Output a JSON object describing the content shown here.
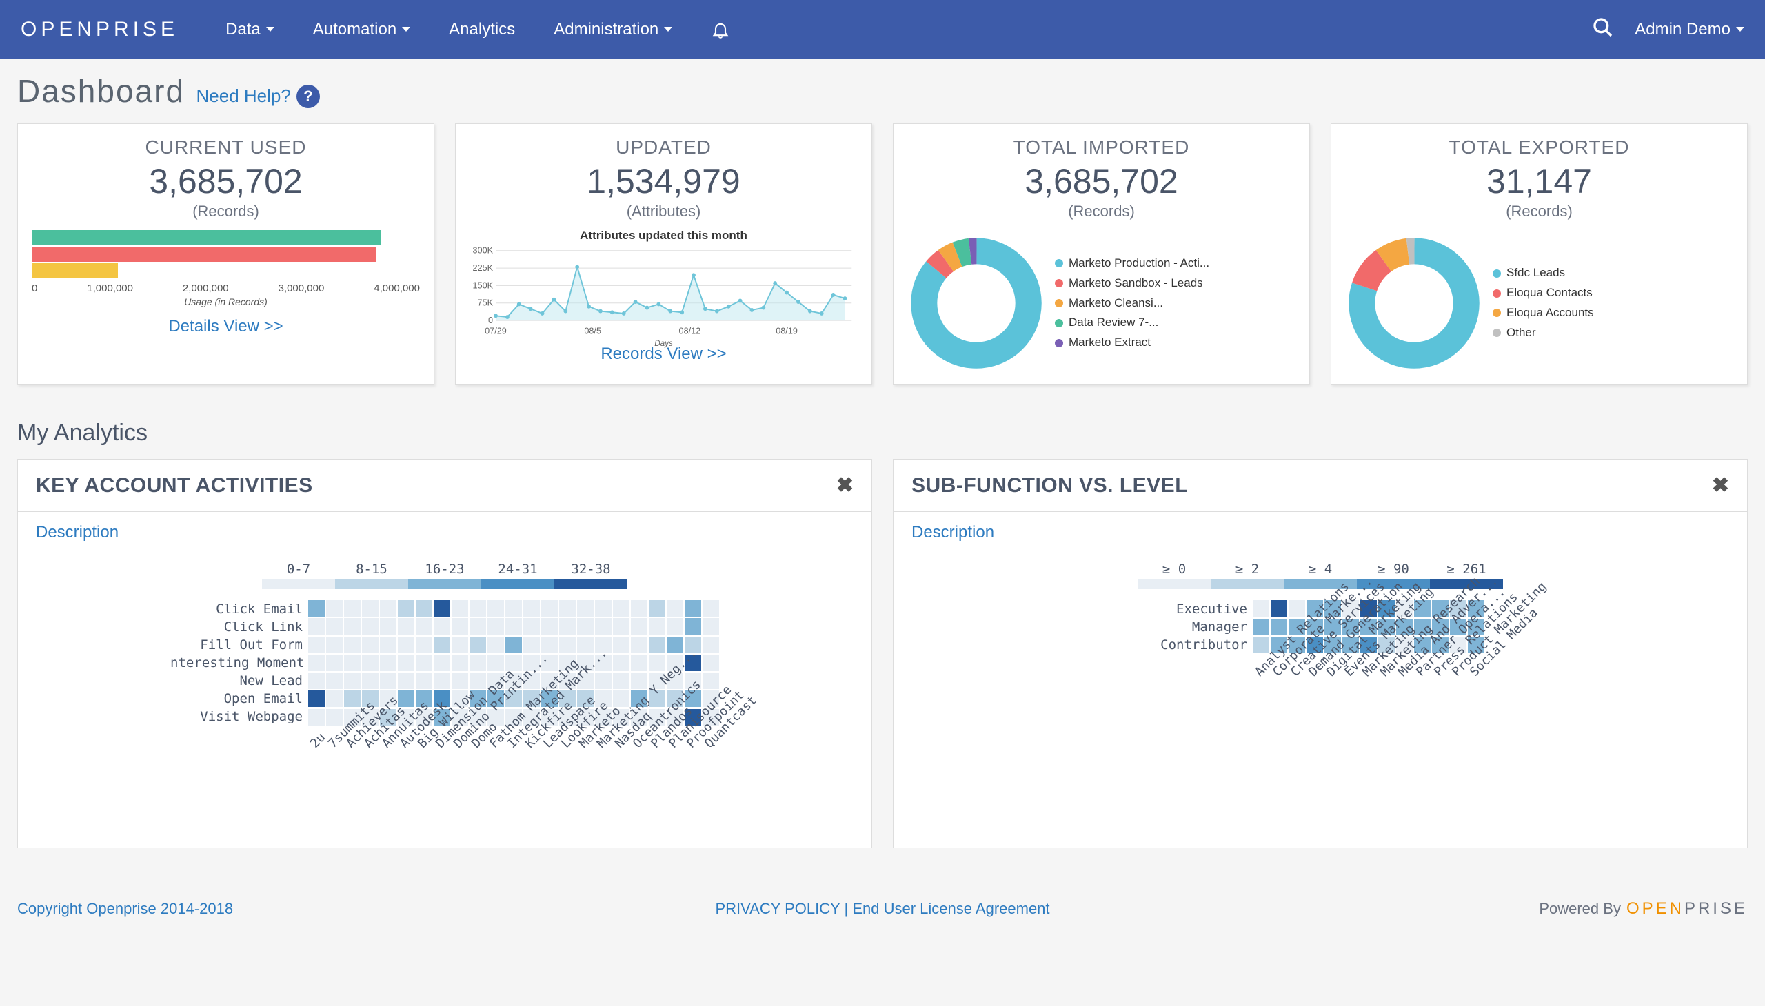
{
  "nav": {
    "logo": "OPENPRISE",
    "items": [
      "Data",
      "Automation",
      "Analytics",
      "Administration"
    ],
    "has_caret": [
      true,
      true,
      false,
      true
    ],
    "user": "Admin Demo"
  },
  "page": {
    "title": "Dashboard",
    "help": "Need Help?"
  },
  "cards": {
    "current_used": {
      "title": "CURRENT USED",
      "value": "3,685,702",
      "unit": "(Records)",
      "link": "Details View >>",
      "bars": {
        "values": [
          4050000,
          4000000,
          1000000
        ],
        "colors": [
          "#4bbf9d",
          "#f16a6a",
          "#f4c542"
        ],
        "axis_ticks": [
          "0",
          "1,000,000",
          "2,000,000",
          "3,000,000",
          "4,000,000"
        ],
        "axis_label": "Usage (in Records)",
        "max": 4500000
      }
    },
    "updated": {
      "title": "UPDATED",
      "value": "1,534,979",
      "unit": "(Attributes)",
      "link": "Records View >>",
      "chart": {
        "title": "Attributes updated this month",
        "y_ticks": [
          "300K",
          "225K",
          "150K",
          "75K",
          "0"
        ],
        "x_ticks": [
          "07/29",
          "08/5",
          "08/12",
          "08/19"
        ],
        "x_label": "Days",
        "series_color": "#6fc5d9",
        "fill_color": "#bfe7ef",
        "points": [
          20,
          15,
          70,
          50,
          30,
          90,
          40,
          230,
          60,
          40,
          35,
          30,
          80,
          55,
          70,
          40,
          35,
          195,
          50,
          40,
          60,
          85,
          45,
          55,
          160,
          120,
          80,
          40,
          30,
          110,
          95
        ]
      }
    },
    "imported": {
      "title": "TOTAL IMPORTED",
      "value": "3,685,702",
      "unit": "(Records)",
      "donut": {
        "slices": [
          {
            "label": "Marketo Production - Acti...",
            "color": "#5bc2d9",
            "pct": 86
          },
          {
            "label": "Marketo Sandbox - Leads",
            "color": "#f16a6a",
            "pct": 4
          },
          {
            "label": "Marketo Cleansi...",
            "color": "#f4a742",
            "pct": 4
          },
          {
            "label": "Data Review 7-...",
            "color": "#4bbf9d",
            "pct": 4
          },
          {
            "label": "Marketo Extract",
            "color": "#7a5fb5",
            "pct": 2
          }
        ]
      }
    },
    "exported": {
      "title": "TOTAL EXPORTED",
      "value": "31,147",
      "unit": "(Records)",
      "donut": {
        "slices": [
          {
            "label": "Sfdc Leads",
            "color": "#5bc2d9",
            "pct": 80
          },
          {
            "label": "Eloqua Contacts",
            "color": "#f16a6a",
            "pct": 10
          },
          {
            "label": "Eloqua Accounts",
            "color": "#f4a742",
            "pct": 8
          },
          {
            "label": "Other",
            "color": "#c0c0c0",
            "pct": 2
          }
        ]
      }
    }
  },
  "analytics_title": "My Analytics",
  "panels": {
    "p1": {
      "title": "KEY ACCOUNT ACTIVITIES",
      "sub": "Description",
      "scale_labels": [
        "0-7",
        "8-15",
        "16-23",
        "24-31",
        "32-38"
      ],
      "scale_colors": [
        "#e8eef4",
        "#bcd5e6",
        "#7fb4d6",
        "#4a8fc4",
        "#25599c"
      ],
      "rows": [
        "Click Email",
        "Click Link",
        "Fill Out Form",
        "nteresting Moment",
        "New Lead",
        "Open Email",
        "Visit Webpage"
      ],
      "cols": [
        "2u",
        "7summits",
        "Achievers",
        "Achitas",
        "Annuitas",
        "Autodesk",
        "Big Willow",
        "Dimension Data",
        "Domino Printin...",
        "Domo",
        "Fathom Marketing",
        "Integrated Mark...",
        "Kickfire",
        "Leadspace",
        "Lookfire",
        "Marketo",
        "Marketing Y Neg...",
        "Nasdaq",
        "Oceantronics",
        "Plandos",
        "Planisource",
        "Proofpoint",
        "Quantcast"
      ],
      "grid": [
        [
          2,
          0,
          0,
          0,
          0,
          1,
          1,
          4,
          0,
          0,
          0,
          0,
          0,
          0,
          0,
          0,
          0,
          0,
          0,
          1,
          0,
          2,
          0
        ],
        [
          0,
          0,
          0,
          0,
          0,
          0,
          0,
          0,
          0,
          0,
          0,
          0,
          0,
          0,
          0,
          0,
          0,
          0,
          0,
          0,
          0,
          2,
          0
        ],
        [
          0,
          0,
          0,
          0,
          0,
          0,
          0,
          1,
          0,
          1,
          0,
          2,
          0,
          0,
          0,
          0,
          0,
          0,
          0,
          1,
          2,
          1,
          0
        ],
        [
          0,
          0,
          0,
          0,
          0,
          0,
          0,
          0,
          0,
          0,
          0,
          0,
          0,
          0,
          0,
          0,
          0,
          0,
          0,
          0,
          0,
          4,
          0
        ],
        [
          0,
          0,
          0,
          0,
          0,
          0,
          0,
          0,
          0,
          0,
          0,
          0,
          0,
          0,
          0,
          0,
          0,
          0,
          0,
          0,
          0,
          0,
          0
        ],
        [
          4,
          0,
          1,
          1,
          0,
          2,
          2,
          3,
          0,
          2,
          2,
          1,
          1,
          2,
          1,
          1,
          0,
          0,
          2,
          1,
          1,
          2,
          0
        ],
        [
          0,
          0,
          0,
          0,
          1,
          0,
          0,
          2,
          0,
          0,
          0,
          0,
          0,
          0,
          0,
          0,
          0,
          0,
          0,
          0,
          0,
          4,
          0
        ]
      ]
    },
    "p2": {
      "title": "SUB-FUNCTION VS. LEVEL",
      "sub": "Description",
      "scale_labels": [
        "≥ 0",
        "≥ 2",
        "≥ 4",
        "≥ 90",
        "≥ 261"
      ],
      "scale_colors": [
        "#e8eef4",
        "#bcd5e6",
        "#7fb4d6",
        "#4a8fc4",
        "#25599c"
      ],
      "rows": [
        "Executive",
        "Manager",
        "Contributor"
      ],
      "cols": [
        "Analyst Relations",
        "Corporate Marke...",
        "Creative Services",
        "Demand Generation",
        "Digital Marketing",
        "Events Marketing",
        "Marketing",
        "Marketing Research",
        "Media And Adver...",
        "Partner Opera...",
        "Press Relations",
        "Product Marketing",
        "Social Media"
      ],
      "grid": [
        [
          0,
          4,
          0,
          2,
          2,
          0,
          4,
          3,
          0,
          2,
          2,
          1,
          2
        ],
        [
          2,
          2,
          2,
          2,
          2,
          2,
          2,
          2,
          2,
          2,
          2,
          2,
          2
        ],
        [
          1,
          2,
          2,
          3,
          2,
          2,
          3,
          1,
          0,
          2,
          2,
          0,
          2
        ]
      ]
    }
  },
  "footer": {
    "copyright": "Copyright Openprise 2014-2018",
    "center": "PRIVACY POLICY | End User License Agreement",
    "powered": "Powered By"
  }
}
